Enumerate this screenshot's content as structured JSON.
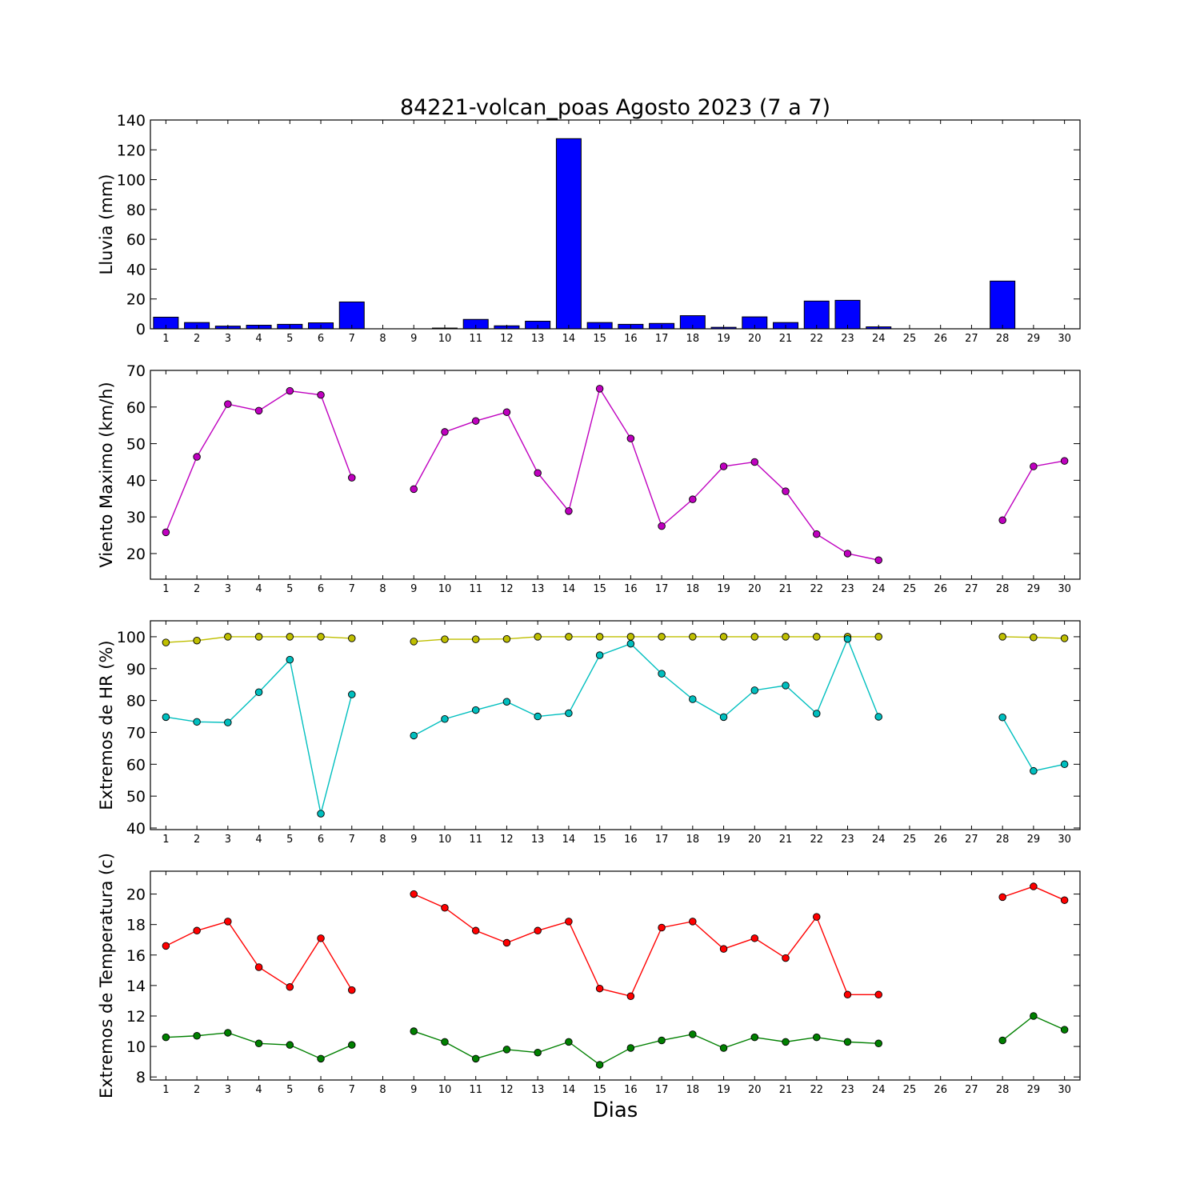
{
  "title": "84221-volcan_poas Agosto 2023  (7 a 7)",
  "xlabel": "Dias",
  "chart_data": [
    {
      "type": "bar",
      "ylabel": "Lluvia (mm)",
      "ylim": [
        0,
        140
      ],
      "yticks": [
        0,
        20,
        40,
        60,
        80,
        100,
        120,
        140
      ],
      "categories": [
        1,
        2,
        3,
        4,
        5,
        6,
        7,
        8,
        9,
        10,
        11,
        12,
        13,
        14,
        15,
        16,
        17,
        18,
        19,
        20,
        21,
        22,
        23,
        24,
        25,
        26,
        27,
        28,
        29,
        30
      ],
      "series": [
        {
          "color": "#0000ff",
          "values": [
            7.8,
            4.2,
            1.8,
            2.4,
            3.0,
            4.0,
            18.0,
            0,
            0,
            0.5,
            6.3,
            2.0,
            5.1,
            127.5,
            4.2,
            3.0,
            3.6,
            8.8,
            1.0,
            8.0,
            4.2,
            18.6,
            19.1,
            1.3,
            0,
            0,
            0,
            32.0,
            0,
            0
          ]
        }
      ]
    },
    {
      "type": "line",
      "ylabel": "Viento Maximo (km/h)",
      "ylim": [
        13,
        70
      ],
      "yticks": [
        20,
        30,
        40,
        50,
        60,
        70
      ],
      "categories": [
        1,
        2,
        3,
        4,
        5,
        6,
        7,
        8,
        9,
        10,
        11,
        12,
        13,
        14,
        15,
        16,
        17,
        18,
        19,
        20,
        21,
        22,
        23,
        24,
        25,
        26,
        27,
        28,
        29,
        30
      ],
      "series": [
        {
          "color": "#bf00bf",
          "values": [
            25.8,
            46.4,
            60.8,
            59.0,
            64.4,
            63.3,
            40.7,
            null,
            37.6,
            53.2,
            56.2,
            58.6,
            42.0,
            31.6,
            65.0,
            51.4,
            27.5,
            34.8,
            43.8,
            45.0,
            37.0,
            25.3,
            20.0,
            18.2,
            null,
            null,
            null,
            29.1,
            43.8,
            45.3
          ]
        }
      ]
    },
    {
      "type": "line",
      "ylabel": "Extremos de HR (%)",
      "ylim": [
        39.5,
        105
      ],
      "yticks": [
        40,
        50,
        60,
        70,
        80,
        90,
        100
      ],
      "categories": [
        1,
        2,
        3,
        4,
        5,
        6,
        7,
        8,
        9,
        10,
        11,
        12,
        13,
        14,
        15,
        16,
        17,
        18,
        19,
        20,
        21,
        22,
        23,
        24,
        25,
        26,
        27,
        28,
        29,
        30
      ],
      "series": [
        {
          "color": "#bfbf00",
          "values": [
            98.2,
            98.8,
            100,
            100,
            100,
            100,
            99.5,
            null,
            98.5,
            99.2,
            99.2,
            99.3,
            100,
            100,
            100,
            100,
            100,
            100,
            100,
            100,
            100,
            100,
            100,
            100,
            null,
            null,
            null,
            100,
            99.8,
            99.5
          ]
        },
        {
          "color": "#00bfbf",
          "values": [
            74.8,
            73.3,
            73.1,
            82.6,
            92.8,
            44.5,
            81.9,
            null,
            69.0,
            74.2,
            77.0,
            79.6,
            75.0,
            76.0,
            94.2,
            97.8,
            88.4,
            80.4,
            74.8,
            83.2,
            84.7,
            75.9,
            99.3,
            74.9,
            null,
            null,
            null,
            74.7,
            57.9,
            60.0
          ]
        }
      ]
    },
    {
      "type": "line",
      "ylabel": "Extremos de Temperatura (c)",
      "ylim": [
        7.8,
        21.5
      ],
      "yticks": [
        8,
        10,
        12,
        14,
        16,
        18,
        20
      ],
      "categories": [
        1,
        2,
        3,
        4,
        5,
        6,
        7,
        8,
        9,
        10,
        11,
        12,
        13,
        14,
        15,
        16,
        17,
        18,
        19,
        20,
        21,
        22,
        23,
        24,
        25,
        26,
        27,
        28,
        29,
        30
      ],
      "series": [
        {
          "color": "#ff0000",
          "values": [
            16.6,
            17.6,
            18.2,
            15.2,
            13.9,
            17.1,
            13.7,
            null,
            20.0,
            19.1,
            17.6,
            16.8,
            17.6,
            18.2,
            13.8,
            13.3,
            17.8,
            18.2,
            16.4,
            17.1,
            15.8,
            18.5,
            13.4,
            13.4,
            null,
            null,
            null,
            19.8,
            20.5,
            19.6
          ]
        },
        {
          "color": "#008000",
          "values": [
            10.6,
            10.7,
            10.9,
            10.2,
            10.1,
            9.2,
            10.1,
            null,
            11.0,
            10.3,
            9.2,
            9.8,
            9.6,
            10.3,
            8.8,
            9.9,
            10.4,
            10.8,
            9.9,
            10.6,
            10.3,
            10.6,
            10.3,
            10.2,
            null,
            null,
            null,
            10.4,
            12.0,
            11.1
          ]
        }
      ]
    }
  ]
}
